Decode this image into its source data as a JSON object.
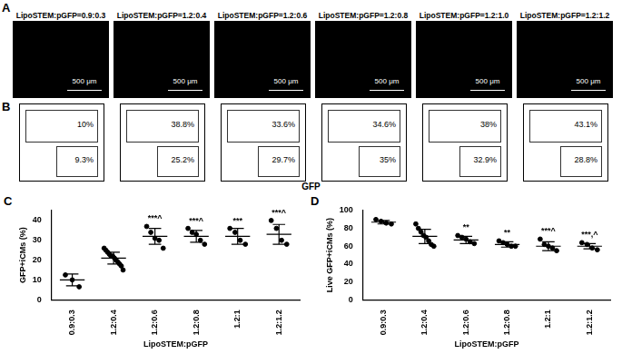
{
  "panel_A": {
    "letter": "A",
    "images": [
      "LipoSTEM:pGFP=0.9:0.3",
      "LipoSTEM:pGFP=1.2:0.4",
      "LipoSTEM:pGFP=1.2:0.6",
      "LipoSTEM:pGFP=1.2:0.8",
      "LipoSTEM:pGFP=1.2:1.0",
      "LipoSTEM:pGFP=1.2:1.2"
    ],
    "scale_bar": "500 μm"
  },
  "panel_B": {
    "letter": "B",
    "x_label": "GFP",
    "plots": [
      {
        "upper": "10%",
        "lower": "9.3%"
      },
      {
        "upper": "38.8%",
        "lower": "25.2%"
      },
      {
        "upper": "33.6%",
        "lower": "29.7%"
      },
      {
        "upper": "34.6%",
        "lower": "35%"
      },
      {
        "upper": "38%",
        "lower": "32.9%"
      },
      {
        "upper": "43.1%",
        "lower": "28.8%"
      }
    ]
  },
  "chart_data": [
    {
      "letter": "C",
      "type": "scatter",
      "x_label": "LipoSTEM:pGFP",
      "y_label": "GFP+iCMs (%)",
      "categories": [
        "0.9:0.3",
        "1.2:0.4",
        "1.2:0.6",
        "1.2:0.8",
        "1.2:1",
        "1.2:1.2"
      ],
      "points": [
        [
          12.5,
          10,
          6.5
        ],
        [
          26,
          25,
          24,
          23,
          22,
          22,
          21,
          20,
          19,
          18,
          17,
          15
        ],
        [
          37,
          34,
          31,
          30,
          26
        ],
        [
          36,
          34,
          33,
          30,
          28
        ],
        [
          36,
          34,
          30,
          28
        ],
        [
          40,
          36,
          30,
          28
        ]
      ],
      "means": [
        10,
        21,
        32,
        32,
        32,
        33
      ],
      "errors": [
        3,
        3,
        4,
        3,
        4,
        5
      ],
      "annotations": [
        null,
        null,
        "***^",
        "***^",
        "***",
        "***^"
      ],
      "ylim": [
        0,
        45
      ],
      "yticks": [
        0,
        10,
        20,
        30,
        40
      ],
      "color": "#000000",
      "marker": "circle",
      "grid": false
    },
    {
      "letter": "D",
      "type": "scatter",
      "x_label": "LipoSTEM:pGFP",
      "y_label": "Live GFP+iCMs (%)",
      "categories": [
        "0.9:0.3",
        "1.2:0.4",
        "1.2:0.6",
        "1.2:0.8",
        "1.2:1",
        "1.2:1.2"
      ],
      "points": [
        [
          90,
          88,
          86,
          85
        ],
        [
          85,
          80,
          76,
          72,
          70,
          66,
          62,
          60
        ],
        [
          72,
          70,
          68,
          65,
          63
        ],
        [
          66,
          64,
          62,
          60,
          60
        ],
        [
          68,
          62,
          60,
          58,
          55
        ],
        [
          64,
          62,
          58,
          56
        ]
      ],
      "means": [
        87,
        71,
        67,
        62,
        60,
        60
      ],
      "errors": [
        2,
        8,
        4,
        3,
        5,
        3
      ],
      "annotations": [
        null,
        null,
        "**",
        "**",
        "***^",
        "***,^"
      ],
      "ylim": [
        0,
        100
      ],
      "yticks": [
        0,
        20,
        40,
        60,
        80,
        100
      ],
      "color": "#000000",
      "marker": "circle",
      "grid": false
    }
  ]
}
